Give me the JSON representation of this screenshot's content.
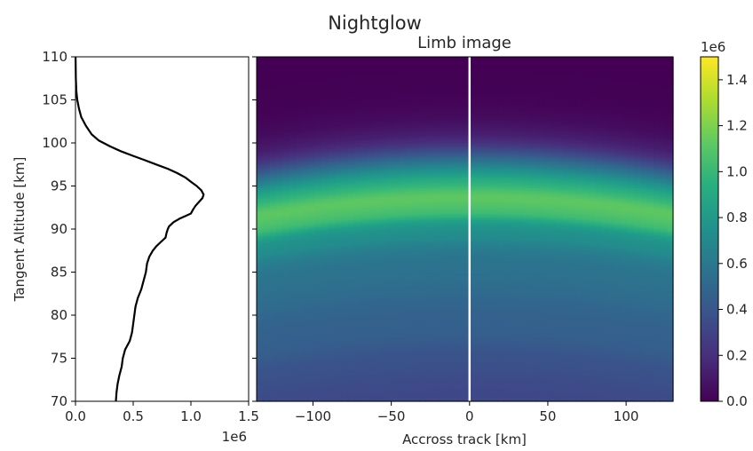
{
  "suptitle": "Nightglow",
  "colors": {
    "profile_line": "#000000",
    "track_line": "#ffffff",
    "axis": "#000000",
    "text": "#262626"
  },
  "chart_data": [
    {
      "type": "line",
      "title": "",
      "xlabel": "",
      "ylabel": "Tangent Altitude [km]",
      "x_scale_label": "1e6",
      "xlim": [
        0,
        1500000
      ],
      "ylim": [
        70,
        110
      ],
      "x_ticks": [
        0,
        500000,
        1000000,
        1500000
      ],
      "x_tick_labels": [
        "0.0",
        "0.5",
        "1.0",
        "1.5"
      ],
      "y_ticks": [
        70,
        75,
        80,
        85,
        90,
        95,
        100,
        105,
        110
      ],
      "y_tick_labels": [
        "70",
        "75",
        "80",
        "85",
        "90",
        "95",
        "100",
        "105",
        "110"
      ],
      "grid": false,
      "series": [
        {
          "name": "",
          "x": [
            350000,
            355000,
            365000,
            380000,
            400000,
            410000,
            430000,
            470000,
            490000,
            500000,
            510000,
            520000,
            540000,
            570000,
            590000,
            610000,
            620000,
            640000,
            670000,
            700000,
            740000,
            780000,
            790000,
            800000,
            810000,
            850000,
            900000,
            950000,
            1000000,
            1020000,
            1040000,
            1060000,
            1080000,
            1100000,
            1110000,
            1090000,
            1050000,
            1000000,
            950000,
            880000,
            800000,
            700000,
            600000,
            500000,
            400000,
            300000,
            200000,
            140000,
            90000,
            50000,
            30000,
            15000,
            8000,
            3000,
            1000
          ],
          "y": [
            70,
            71,
            72,
            73,
            74,
            75,
            76,
            77,
            78,
            79,
            80,
            81,
            82,
            83,
            84,
            85,
            86,
            86.8,
            87.5,
            88,
            88.5,
            89,
            89.6,
            90,
            90.3,
            90.8,
            91.2,
            91.5,
            91.8,
            92.3,
            92.7,
            93,
            93.3,
            93.6,
            94,
            94.5,
            95,
            95.5,
            96,
            96.5,
            97,
            97.5,
            98,
            98.5,
            99,
            99.6,
            100.3,
            101,
            102,
            103,
            104,
            105,
            106,
            107.5,
            110
          ]
        }
      ]
    },
    {
      "type": "heatmap",
      "title": "Limb image",
      "xlabel": "Accross track [km]",
      "ylabel": "",
      "xlim": [
        -136,
        130
      ],
      "ylim": [
        70,
        110
      ],
      "x_ticks": [
        -100,
        -50,
        0,
        50,
        100
      ],
      "x_tick_labels": [
        "−100",
        "−50",
        "0",
        "50",
        "100"
      ],
      "colormap": "viridis",
      "marker_line_x": 0,
      "grid": false,
      "colorbar": {
        "label": "1e6",
        "range": [
          0,
          1500000
        ],
        "ticks": [
          0,
          200000,
          400000,
          600000,
          800000,
          1000000,
          1200000,
          1400000
        ],
        "tick_labels": [
          "0.0",
          "0.2",
          "0.4",
          "0.6",
          "0.8",
          "1.0",
          "1.2",
          "1.4"
        ]
      }
    }
  ]
}
